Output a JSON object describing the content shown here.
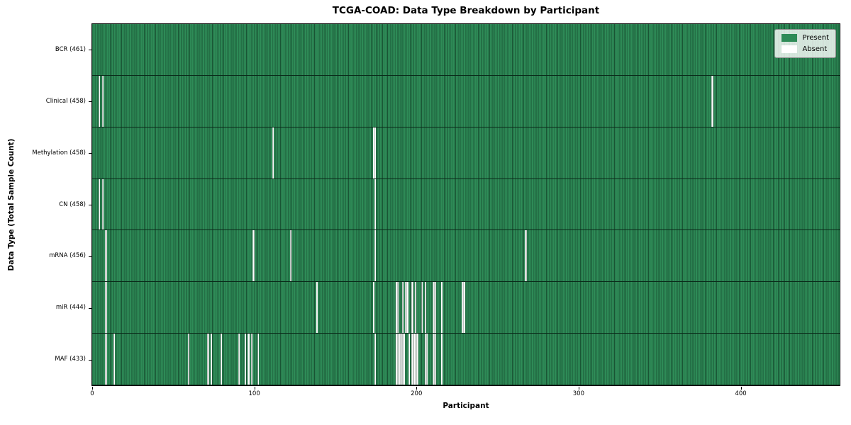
{
  "title": "TCGA-COAD: Data Type Breakdown by Participant",
  "xlabel": "Participant",
  "ylabel": "Data Type (Total Sample Count)",
  "legend": {
    "present_label": "Present",
    "absent_label": "Absent",
    "position": "upper right"
  },
  "colors": {
    "present": "#2e8b57",
    "absent": "#ffffff",
    "cell_edge": "#0a2818",
    "plot_border": "#000000"
  },
  "chart_data": {
    "type": "heatmap",
    "title": "TCGA-COAD: Data Type Breakdown by Participant",
    "xlabel": "Participant",
    "ylabel": "Data Type (Total Sample Count)",
    "xlim": [
      0,
      461
    ],
    "x_ticks": [
      0,
      100,
      200,
      300,
      400
    ],
    "grid": false,
    "legend": [
      "Present",
      "Absent"
    ],
    "legend_position": "upper right",
    "n_participants": 461,
    "rows": [
      {
        "label": "BCR (461)",
        "data_type": "BCR",
        "sample_count": 461,
        "absent_participants": []
      },
      {
        "label": "Clinical (458)",
        "data_type": "Clinical",
        "sample_count": 458,
        "absent_participants": [
          4,
          6,
          382
        ]
      },
      {
        "label": "Methylation (458)",
        "data_type": "Methylation",
        "sample_count": 458,
        "absent_participants": [
          111,
          173,
          174
        ]
      },
      {
        "label": "CN (458)",
        "data_type": "CN",
        "sample_count": 458,
        "absent_participants": [
          4,
          6,
          174
        ]
      },
      {
        "label": "mRNA (456)",
        "data_type": "mRNA",
        "sample_count": 456,
        "absent_participants": [
          8,
          99,
          122,
          174,
          267
        ]
      },
      {
        "label": "miR (444)",
        "data_type": "miR",
        "sample_count": 444,
        "absent_participants": [
          8,
          138,
          173,
          187,
          188,
          191,
          193,
          194,
          197,
          199,
          203,
          205,
          210,
          211,
          215,
          228,
          229
        ]
      },
      {
        "label": "MAF (433)",
        "data_type": "MAF",
        "sample_count": 433,
        "absent_participants": [
          8,
          13,
          59,
          71,
          73,
          79,
          90,
          94,
          96,
          98,
          102,
          174,
          187,
          188,
          189,
          190,
          191,
          192,
          195,
          197,
          198,
          199,
          200,
          205,
          206,
          210,
          211,
          215
        ]
      }
    ]
  }
}
